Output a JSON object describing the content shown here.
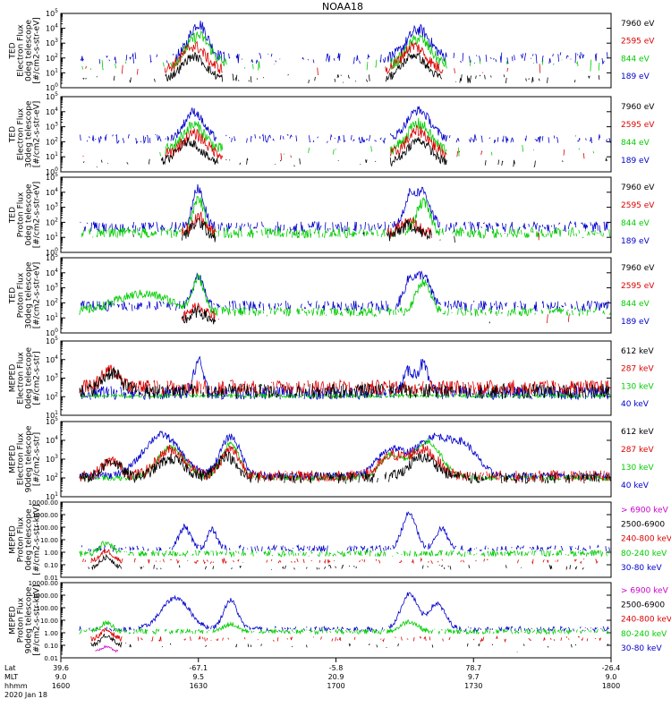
{
  "chart_data": {
    "type": "line",
    "title": "NOAA18",
    "date_label": "2020 Jan 18",
    "x_axis": {
      "rows": [
        {
          "label": "Lat",
          "values": [
            "39.6",
            "-67.1",
            "-5.8",
            "78.7",
            "-26.4"
          ]
        },
        {
          "label": "MLT",
          "values": [
            "9.0",
            "9.5",
            "20.9",
            "9.7",
            "9.0"
          ]
        },
        {
          "label": "hhmm",
          "values": [
            "1600",
            "1630",
            "1700",
            "1730",
            "1800"
          ]
        }
      ],
      "range_minutes": [
        0,
        120
      ]
    },
    "panels": [
      {
        "ylabel": [
          "TED",
          "Electron Flux",
          "0deg telescope",
          "[#/cm2-s-str-eV]"
        ],
        "yscale": "log",
        "ylim": [
          1,
          100000
        ],
        "ticks": [
          "10^0",
          "10^1",
          "10^2",
          "10^3",
          "10^4",
          "10^5"
        ],
        "legend": [
          {
            "label": "7960 eV",
            "color": "#000000"
          },
          {
            "label": "2595 eV",
            "color": "#dd0000"
          },
          {
            "label": "844 eV",
            "color": "#00cc00"
          },
          {
            "label": "189 eV",
            "color": "#0000cc"
          }
        ],
        "profile": "ted_e0"
      },
      {
        "ylabel": [
          "TED",
          "Electron Flux",
          "30deg telescope",
          "[#/cm2-s-str-eV]"
        ],
        "yscale": "log",
        "ylim": [
          1,
          100000
        ],
        "ticks": [
          "10^0",
          "10^1",
          "10^2",
          "10^3",
          "10^4",
          "10^5"
        ],
        "legend": [
          {
            "label": "7960 eV",
            "color": "#000000"
          },
          {
            "label": "2595 eV",
            "color": "#dd0000"
          },
          {
            "label": "844 eV",
            "color": "#00cc00"
          },
          {
            "label": "189 eV",
            "color": "#0000cc"
          }
        ],
        "profile": "ted_e30"
      },
      {
        "ylabel": [
          "TED",
          "Proton Flux",
          "0deg telescope",
          "[#/cm2-s-str-eV]"
        ],
        "yscale": "log",
        "ylim": [
          1,
          100000
        ],
        "ticks": [
          "10^0",
          "10^1",
          "10^2",
          "10^3",
          "10^4",
          "10^5"
        ],
        "legend": [
          {
            "label": "7960 eV",
            "color": "#000000"
          },
          {
            "label": "2595 eV",
            "color": "#dd0000"
          },
          {
            "label": "844 eV",
            "color": "#00cc00"
          },
          {
            "label": "189 eV",
            "color": "#0000cc"
          }
        ],
        "profile": "ted_p0"
      },
      {
        "ylabel": [
          "TED",
          "Proton Flux",
          "30deg telescope",
          "[#/cm2-s-str-eV]"
        ],
        "yscale": "log",
        "ylim": [
          1,
          100000
        ],
        "ticks": [
          "10^0",
          "10^1",
          "10^2",
          "10^3",
          "10^4",
          "10^5"
        ],
        "legend": [
          {
            "label": "7960 eV",
            "color": "#000000"
          },
          {
            "label": "2595 eV",
            "color": "#dd0000"
          },
          {
            "label": "844 eV",
            "color": "#00cc00"
          },
          {
            "label": "189 eV",
            "color": "#0000cc"
          }
        ],
        "profile": "ted_p30"
      },
      {
        "ylabel": [
          "MEPED",
          "Electron Flux",
          "0deg telescope",
          "[#/cm2-s-str]"
        ],
        "yscale": "log",
        "ylim": [
          10,
          100000
        ],
        "ticks": [
          "10^1",
          "10^2",
          "10^3",
          "10^4",
          "10^5"
        ],
        "legend": [
          {
            "label": "612 keV",
            "color": "#000000"
          },
          {
            "label": "287 keV",
            "color": "#dd0000"
          },
          {
            "label": "130 keV",
            "color": "#00cc00"
          },
          {
            "label": "40 keV",
            "color": "#0000cc"
          }
        ],
        "profile": "meped_e0"
      },
      {
        "ylabel": [
          "MEPED",
          "Electron Flux",
          "90deg telescope",
          "[#/cm2-s-str]"
        ],
        "yscale": "log",
        "ylim": [
          10,
          100000
        ],
        "ticks": [
          "10^1",
          "10^2",
          "10^3",
          "10^4",
          "10^5"
        ],
        "legend": [
          {
            "label": "612 keV",
            "color": "#000000"
          },
          {
            "label": "287 keV",
            "color": "#dd0000"
          },
          {
            "label": "130 keV",
            "color": "#00cc00"
          },
          {
            "label": "40 keV",
            "color": "#0000cc"
          }
        ],
        "profile": "meped_e90"
      },
      {
        "ylabel": [
          "MEPED",
          "Proton Flux",
          "0deg telescope",
          "[#/cm2-s-str-keV]"
        ],
        "yscale": "log",
        "ylim": [
          0.01,
          10000
        ],
        "ticks": [
          "0.01",
          "0.10",
          "1.00",
          "10.00",
          "100.00",
          "1000.00",
          "10000.00"
        ],
        "legend": [
          {
            "label": "> 6900 keV",
            "color": "#cc00cc"
          },
          {
            "label": "2500-6900",
            "color": "#000000"
          },
          {
            "label": "240-800 keV",
            "color": "#dd0000"
          },
          {
            "label": "80-240 keV",
            "color": "#00cc00"
          },
          {
            "label": "30-80 keV",
            "color": "#0000cc"
          }
        ],
        "profile": "meped_p0"
      },
      {
        "ylabel": [
          "MEPED",
          "Proton Flux",
          "90deg telescope",
          "[#/cm2-s-str-keV]"
        ],
        "yscale": "log",
        "ylim": [
          0.01,
          10000
        ],
        "ticks": [
          "0.01",
          "0.10",
          "1.00",
          "10.00",
          "100.00",
          "1000.00",
          "10000.00"
        ],
        "legend": [
          {
            "label": "> 6900 keV",
            "color": "#cc00cc"
          },
          {
            "label": "2500-6900",
            "color": "#000000"
          },
          {
            "label": "240-800 keV",
            "color": "#dd0000"
          },
          {
            "label": "80-240 keV",
            "color": "#00cc00"
          },
          {
            "label": "30-80 keV",
            "color": "#0000cc"
          }
        ],
        "profile": "meped_p90"
      }
    ]
  }
}
